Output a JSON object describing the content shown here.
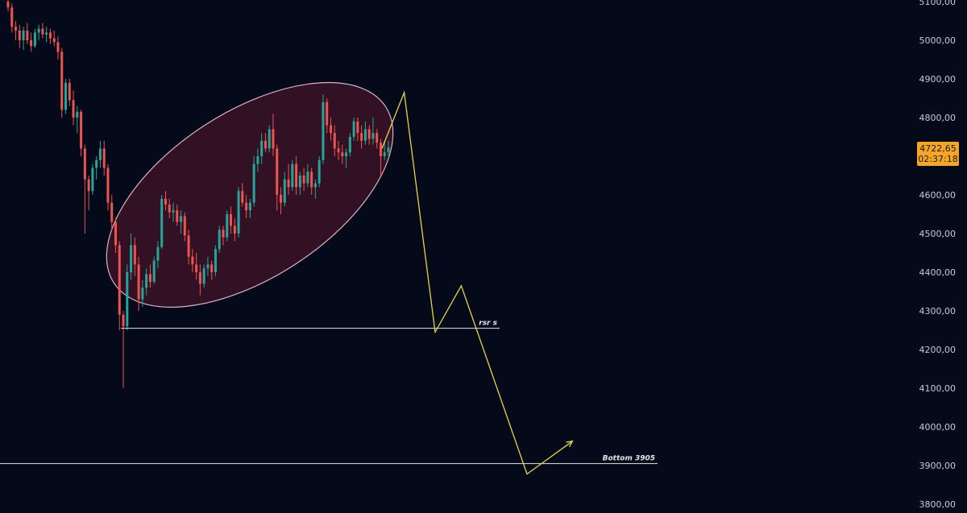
{
  "chart_data": {
    "type": "candlestick",
    "title": "",
    "xlabel": "",
    "ylabel": "",
    "ylim": [
      3780,
      5120
    ],
    "y_ticks": [
      "3800,00",
      "3900,00",
      "4000,00",
      "4100,00",
      "4200,00",
      "4300,00",
      "4400,00",
      "4500,00",
      "4600,00",
      "4700,00",
      "4800,00",
      "4900,00",
      "5000,00",
      "5100,00"
    ],
    "y_tick_values": [
      3800,
      3900,
      4000,
      4100,
      4200,
      4300,
      4400,
      4500,
      4600,
      4700,
      4800,
      4900,
      5000,
      5100
    ],
    "grid": false,
    "colors": {
      "background": "#050a1b",
      "up": "#26a69a",
      "down": "#ef5350",
      "projection": "#e8d44a",
      "highlight_fill": "rgba(120, 30, 50, 0.38)",
      "highlight_stroke": "#d9b3c2",
      "level_line": "#e6e6e6",
      "price_tag": "#f5a623"
    },
    "candles": [
      [
        5100,
        5125,
        5075,
        5085
      ],
      [
        5085,
        5095,
        5020,
        5035
      ],
      [
        5035,
        5050,
        5000,
        5025
      ],
      [
        5025,
        5040,
        4980,
        5000
      ],
      [
        5000,
        5035,
        4975,
        5025
      ],
      [
        5025,
        5045,
        4990,
        5000
      ],
      [
        5000,
        5020,
        4970,
        4985
      ],
      [
        4985,
        5030,
        4980,
        5020
      ],
      [
        5020,
        5040,
        5000,
        5030
      ],
      [
        5030,
        5045,
        5005,
        5015
      ],
      [
        5015,
        5035,
        4995,
        5020
      ],
      [
        5020,
        5030,
        4990,
        5005
      ],
      [
        5005,
        5025,
        4985,
        4995
      ],
      [
        4995,
        5010,
        4950,
        4970
      ],
      [
        4970,
        4980,
        4800,
        4820
      ],
      [
        4820,
        4900,
        4810,
        4890
      ],
      [
        4890,
        4900,
        4830,
        4845
      ],
      [
        4845,
        4870,
        4780,
        4800
      ],
      [
        4800,
        4830,
        4760,
        4815
      ],
      [
        4815,
        4820,
        4700,
        4720
      ],
      [
        4720,
        4730,
        4500,
        4640
      ],
      [
        4640,
        4650,
        4560,
        4610
      ],
      [
        4610,
        4680,
        4600,
        4670
      ],
      [
        4670,
        4700,
        4640,
        4690
      ],
      [
        4690,
        4740,
        4670,
        4720
      ],
      [
        4720,
        4740,
        4650,
        4670
      ],
      [
        4670,
        4680,
        4560,
        4580
      ],
      [
        4580,
        4600,
        4510,
        4530
      ],
      [
        4530,
        4540,
        4450,
        4470
      ],
      [
        4470,
        4480,
        4250,
        4290
      ],
      [
        4290,
        4300,
        4100,
        4260
      ],
      [
        4260,
        4420,
        4250,
        4400
      ],
      [
        4400,
        4500,
        4380,
        4470
      ],
      [
        4470,
        4490,
        4390,
        4420
      ],
      [
        4420,
        4440,
        4300,
        4330
      ],
      [
        4330,
        4380,
        4310,
        4360
      ],
      [
        4360,
        4410,
        4340,
        4395
      ],
      [
        4395,
        4420,
        4360,
        4375
      ],
      [
        4375,
        4440,
        4370,
        4430
      ],
      [
        4430,
        4480,
        4410,
        4465
      ],
      [
        4465,
        4600,
        4460,
        4590
      ],
      [
        4590,
        4610,
        4560,
        4575
      ],
      [
        4575,
        4590,
        4540,
        4555
      ],
      [
        4555,
        4580,
        4530,
        4560
      ],
      [
        4560,
        4575,
        4520,
        4530
      ],
      [
        4530,
        4560,
        4500,
        4545
      ],
      [
        4545,
        4555,
        4480,
        4495
      ],
      [
        4495,
        4510,
        4420,
        4440
      ],
      [
        4440,
        4460,
        4400,
        4420
      ],
      [
        4420,
        4450,
        4380,
        4400
      ],
      [
        4400,
        4420,
        4340,
        4370
      ],
      [
        4370,
        4420,
        4360,
        4410
      ],
      [
        4410,
        4440,
        4390,
        4420
      ],
      [
        4420,
        4430,
        4380,
        4400
      ],
      [
        4400,
        4470,
        4390,
        4460
      ],
      [
        4460,
        4520,
        4450,
        4510
      ],
      [
        4510,
        4520,
        4470,
        4490
      ],
      [
        4490,
        4560,
        4480,
        4550
      ],
      [
        4550,
        4570,
        4500,
        4520
      ],
      [
        4520,
        4540,
        4480,
        4500
      ],
      [
        4500,
        4620,
        4490,
        4610
      ],
      [
        4610,
        4630,
        4570,
        4580
      ],
      [
        4580,
        4600,
        4540,
        4560
      ],
      [
        4560,
        4590,
        4540,
        4580
      ],
      [
        4580,
        4700,
        4570,
        4680
      ],
      [
        4680,
        4720,
        4660,
        4700
      ],
      [
        4700,
        4760,
        4680,
        4740
      ],
      [
        4740,
        4760,
        4710,
        4720
      ],
      [
        4720,
        4780,
        4710,
        4770
      ],
      [
        4770,
        4810,
        4700,
        4720
      ],
      [
        4720,
        4730,
        4560,
        4600
      ],
      [
        4600,
        4620,
        4550,
        4580
      ],
      [
        4580,
        4660,
        4570,
        4640
      ],
      [
        4640,
        4680,
        4600,
        4620
      ],
      [
        4620,
        4690,
        4610,
        4680
      ],
      [
        4680,
        4700,
        4600,
        4620
      ],
      [
        4620,
        4660,
        4600,
        4650
      ],
      [
        4650,
        4670,
        4610,
        4630
      ],
      [
        4630,
        4680,
        4620,
        4660
      ],
      [
        4660,
        4670,
        4600,
        4620
      ],
      [
        4620,
        4640,
        4590,
        4630
      ],
      [
        4630,
        4700,
        4620,
        4690
      ],
      [
        4690,
        4860,
        4680,
        4840
      ],
      [
        4840,
        4850,
        4760,
        4780
      ],
      [
        4780,
        4800,
        4740,
        4760
      ],
      [
        4760,
        4780,
        4700,
        4720
      ],
      [
        4720,
        4740,
        4690,
        4710
      ],
      [
        4710,
        4730,
        4680,
        4700
      ],
      [
        4700,
        4720,
        4670,
        4710
      ],
      [
        4710,
        4760,
        4700,
        4750
      ],
      [
        4750,
        4800,
        4740,
        4790
      ],
      [
        4790,
        4800,
        4740,
        4760
      ],
      [
        4760,
        4780,
        4720,
        4740
      ],
      [
        4740,
        4790,
        4730,
        4770
      ],
      [
        4770,
        4780,
        4730,
        4745
      ],
      [
        4745,
        4800,
        4730,
        4760
      ],
      [
        4760,
        4770,
        4720,
        4735
      ],
      [
        4735,
        4745,
        4650,
        4700
      ],
      [
        4700,
        4740,
        4690,
        4710
      ],
      [
        4710,
        4740,
        4700,
        4722.65
      ]
    ],
    "highlight_ellipse": {
      "label": "",
      "description": ""
    },
    "projection_path": [
      {
        "x": 0.395,
        "y": 4720
      },
      {
        "x": 0.418,
        "y": 4865
      },
      {
        "x": 0.45,
        "y": 4245
      },
      {
        "x": 0.477,
        "y": 4365
      },
      {
        "x": 0.545,
        "y": 3878
      },
      {
        "x": 0.592,
        "y": 3963
      }
    ],
    "levels": [
      {
        "label": "rsr s",
        "value": 4255
      },
      {
        "label": "Bottom 3905",
        "value": 3905
      }
    ],
    "current_price": {
      "value": 4722.65,
      "price_label": "4722,65",
      "countdown": "02:37:18"
    }
  }
}
